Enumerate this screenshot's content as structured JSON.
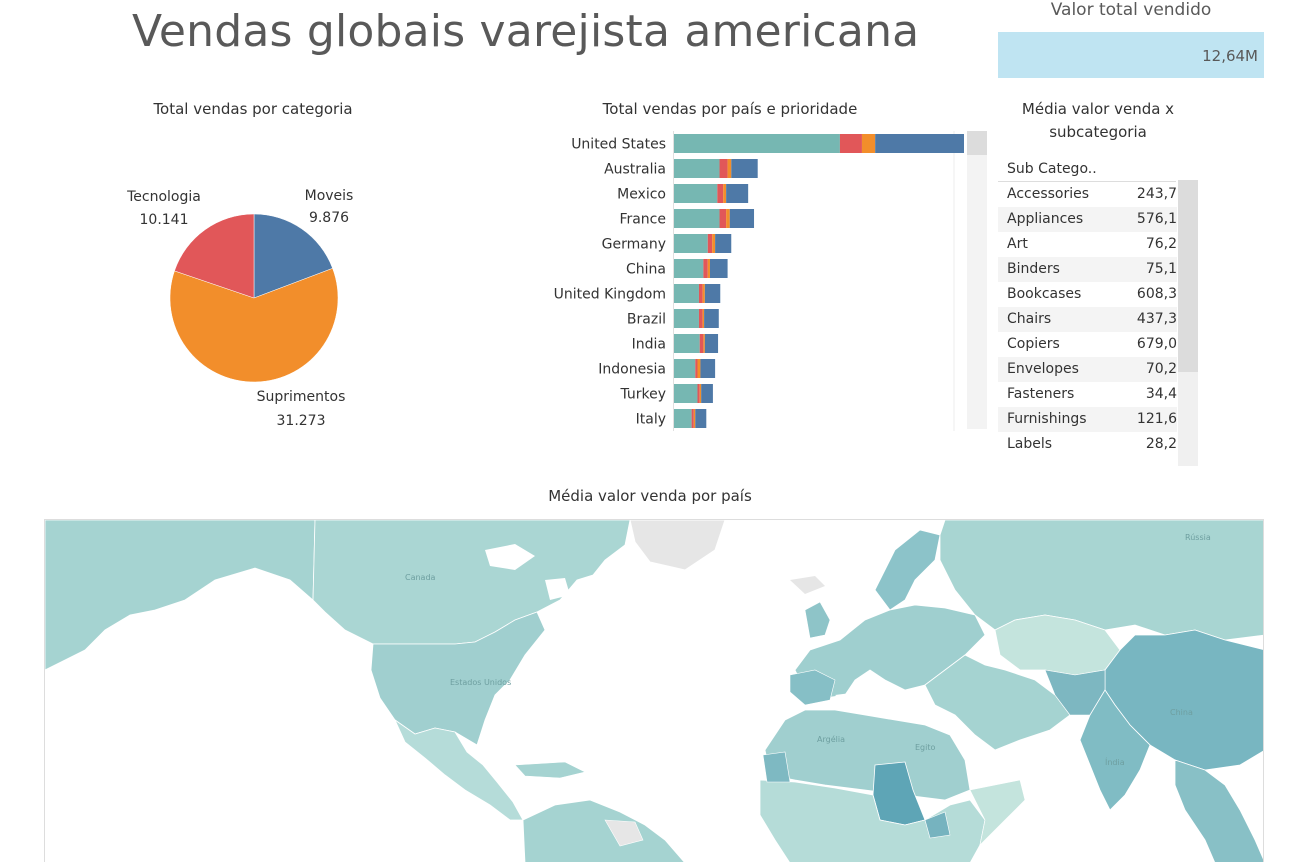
{
  "dashboard": {
    "title": "Vendas globais varejista americana",
    "kpi": {
      "label": "Valor total vendido",
      "value": "12,64M"
    }
  },
  "colors": {
    "priority_critical": "#e15759",
    "priority_high": "#f28e2b",
    "priority_medium": "#4e79a7",
    "priority_low": "#76b7b2",
    "kpi_fill": "#bfe4f2",
    "map_low": "#c7e6e1",
    "map_high": "#5fa8b8"
  },
  "chart_data": [
    {
      "type": "pie",
      "title": "Total vendas por categoria",
      "slices": [
        {
          "label": "Moveis",
          "value": 9876,
          "display": "9.876",
          "color": "#4e79a7"
        },
        {
          "label": "Suprimentos",
          "value": 31273,
          "display": "31.273",
          "color": "#f28e2b"
        },
        {
          "label": "Tecnologia",
          "value": 10141,
          "display": "10.141",
          "color": "#e15759"
        }
      ]
    },
    {
      "type": "bar",
      "orientation": "horizontal",
      "stacked": true,
      "title": "Total vendas por país e prioridade",
      "categories": [
        "United States",
        "Australia",
        "Mexico",
        "France",
        "Germany",
        "China",
        "United Kingdom",
        "Brazil",
        "India",
        "Indonesia",
        "Turkey",
        "Italy"
      ],
      "series": [
        {
          "color": "#76b7b2",
          "values": [
            2260000,
            620000,
            590000,
            620000,
            460000,
            400000,
            340000,
            340000,
            350000,
            290000,
            320000,
            240000
          ]
        },
        {
          "color": "#e15759",
          "values": [
            300000,
            110000,
            80000,
            90000,
            60000,
            60000,
            50000,
            50000,
            50000,
            30000,
            30000,
            30000
          ]
        },
        {
          "color": "#f28e2b",
          "values": [
            180000,
            50000,
            40000,
            50000,
            40000,
            30000,
            30000,
            20000,
            20000,
            40000,
            20000,
            20000
          ]
        },
        {
          "color": "#4e79a7",
          "values": [
            1210000,
            360000,
            300000,
            330000,
            220000,
            240000,
            210000,
            200000,
            180000,
            200000,
            160000,
            150000
          ]
        }
      ],
      "xlim": [
        0,
        3950000
      ]
    },
    {
      "type": "table",
      "title": "Média valor venda x subcategoria",
      "column_header": "Sub Catego..",
      "rows": [
        {
          "label": "Accessories",
          "value": "243,7"
        },
        {
          "label": "Appliances",
          "value": "576,1"
        },
        {
          "label": "Art",
          "value": "76,2"
        },
        {
          "label": "Binders",
          "value": "75,1"
        },
        {
          "label": "Bookcases",
          "value": "608,3"
        },
        {
          "label": "Chairs",
          "value": "437,3"
        },
        {
          "label": "Copiers",
          "value": "679,0"
        },
        {
          "label": "Envelopes",
          "value": "70,2"
        },
        {
          "label": "Fasteners",
          "value": "34,4"
        },
        {
          "label": "Furnishings",
          "value": "121,6"
        },
        {
          "label": "Labels",
          "value": "28,2"
        }
      ]
    },
    {
      "type": "map",
      "title": "Média valor venda por país",
      "map_labels": [
        "Canada",
        "Estados Unidos",
        "Argélia",
        "Egito",
        "China",
        "Índia",
        "Rússia"
      ]
    }
  ]
}
